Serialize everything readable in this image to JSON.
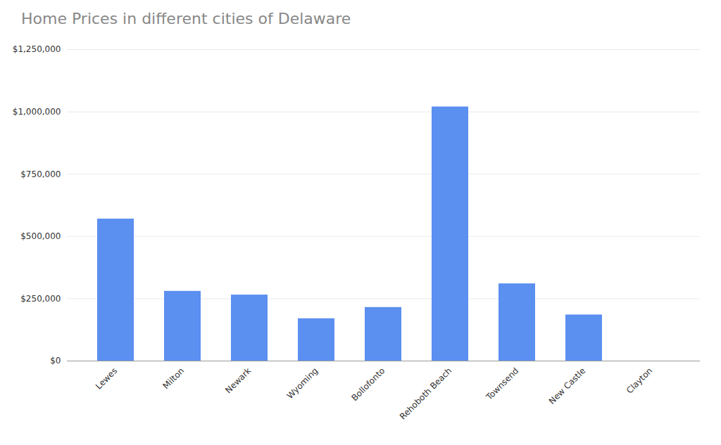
{
  "chart_data": {
    "type": "bar",
    "title": "Home Prices in different cities of Delaware",
    "categories": [
      "Lewes",
      "Milton",
      "Newark",
      "Wyoming",
      "Bollofonto",
      "Rehoboth Beach",
      "Townsend",
      "New Castle",
      "Clayton"
    ],
    "values": [
      570000,
      280000,
      265000,
      170000,
      215000,
      1020000,
      310000,
      185000,
      0
    ],
    "color": "#5b8ff0",
    "ylim": [
      0,
      1250000
    ],
    "yticks": [
      {
        "value": 0,
        "label": "$0"
      },
      {
        "value": 250000,
        "label": "$250,000"
      },
      {
        "value": 500000,
        "label": "$500,000"
      },
      {
        "value": 750000,
        "label": "$750,000"
      },
      {
        "value": 1000000,
        "label": "$1,000,000"
      },
      {
        "value": 1250000,
        "label": "$1,250,000"
      }
    ],
    "grid": true
  }
}
